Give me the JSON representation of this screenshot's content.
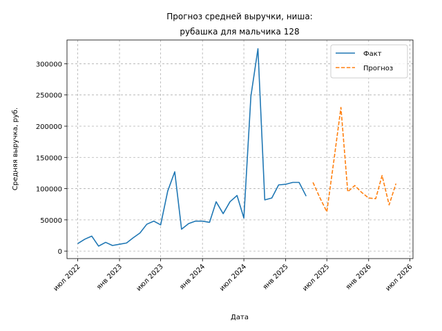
{
  "chart_data": {
    "type": "line",
    "title_line1": "Прогноз средней выручки, ниша:",
    "title_line2": "рубашка для мальчика 128",
    "xlabel": "Дата",
    "ylabel": "Средняя выручка, руб.",
    "ylim": [
      -12000,
      338000
    ],
    "xlim": [
      "2022-05-15",
      "2026-07-15"
    ],
    "grid": true,
    "legend_position": "top-right",
    "y_ticks": [
      0,
      50000,
      100000,
      150000,
      200000,
      250000,
      300000
    ],
    "y_tick_labels": [
      "0",
      "50000",
      "100000",
      "150000",
      "200000",
      "250000",
      "300000"
    ],
    "x_ticks": [
      "2022-07-01",
      "2023-01-01",
      "2023-07-01",
      "2024-01-01",
      "2024-07-01",
      "2025-01-01",
      "2025-07-01",
      "2026-01-01",
      "2026-07-01"
    ],
    "x_tick_labels": [
      "июл 2022",
      "янв 2023",
      "июл 2023",
      "янв 2024",
      "июл 2024",
      "янв 2025",
      "июл 2025",
      "янв 2026",
      "июл 2026"
    ],
    "series": [
      {
        "name": "Факт",
        "color": "#1f77b4",
        "style": "solid",
        "x": [
          "2022-07-01",
          "2022-08-01",
          "2022-09-01",
          "2022-10-01",
          "2022-11-01",
          "2022-12-01",
          "2023-01-01",
          "2023-02-01",
          "2023-03-01",
          "2023-04-01",
          "2023-05-01",
          "2023-06-01",
          "2023-07-01",
          "2023-08-01",
          "2023-09-01",
          "2023-10-01",
          "2023-11-01",
          "2023-12-01",
          "2024-01-01",
          "2024-02-01",
          "2024-03-01",
          "2024-04-01",
          "2024-05-01",
          "2024-06-01",
          "2024-07-01",
          "2024-08-01",
          "2024-09-01",
          "2024-10-01",
          "2024-11-01",
          "2024-12-01",
          "2025-01-01",
          "2025-02-01",
          "2025-03-01",
          "2025-04-01"
        ],
        "values": [
          12000,
          19000,
          24000,
          8000,
          14000,
          9000,
          11000,
          13000,
          21000,
          29000,
          43000,
          48000,
          42000,
          96000,
          127000,
          35000,
          44000,
          48000,
          48000,
          46000,
          79000,
          60000,
          79000,
          89000,
          53000,
          248000,
          324000,
          82000,
          85000,
          106000,
          107000,
          110000,
          110000,
          88000
        ]
      },
      {
        "name": "Прогноз",
        "color": "#ff7f0e",
        "style": "dashed",
        "x": [
          "2025-05-01",
          "2025-06-01",
          "2025-07-01",
          "2025-08-01",
          "2025-09-01",
          "2025-10-01",
          "2025-11-01",
          "2025-12-01",
          "2026-01-01",
          "2026-02-01",
          "2026-03-01",
          "2026-04-01",
          "2026-05-01"
        ],
        "values": [
          110000,
          85000,
          63000,
          145000,
          230000,
          95000,
          105000,
          94000,
          85000,
          84000,
          121000,
          74000,
          108000
        ]
      }
    ]
  }
}
